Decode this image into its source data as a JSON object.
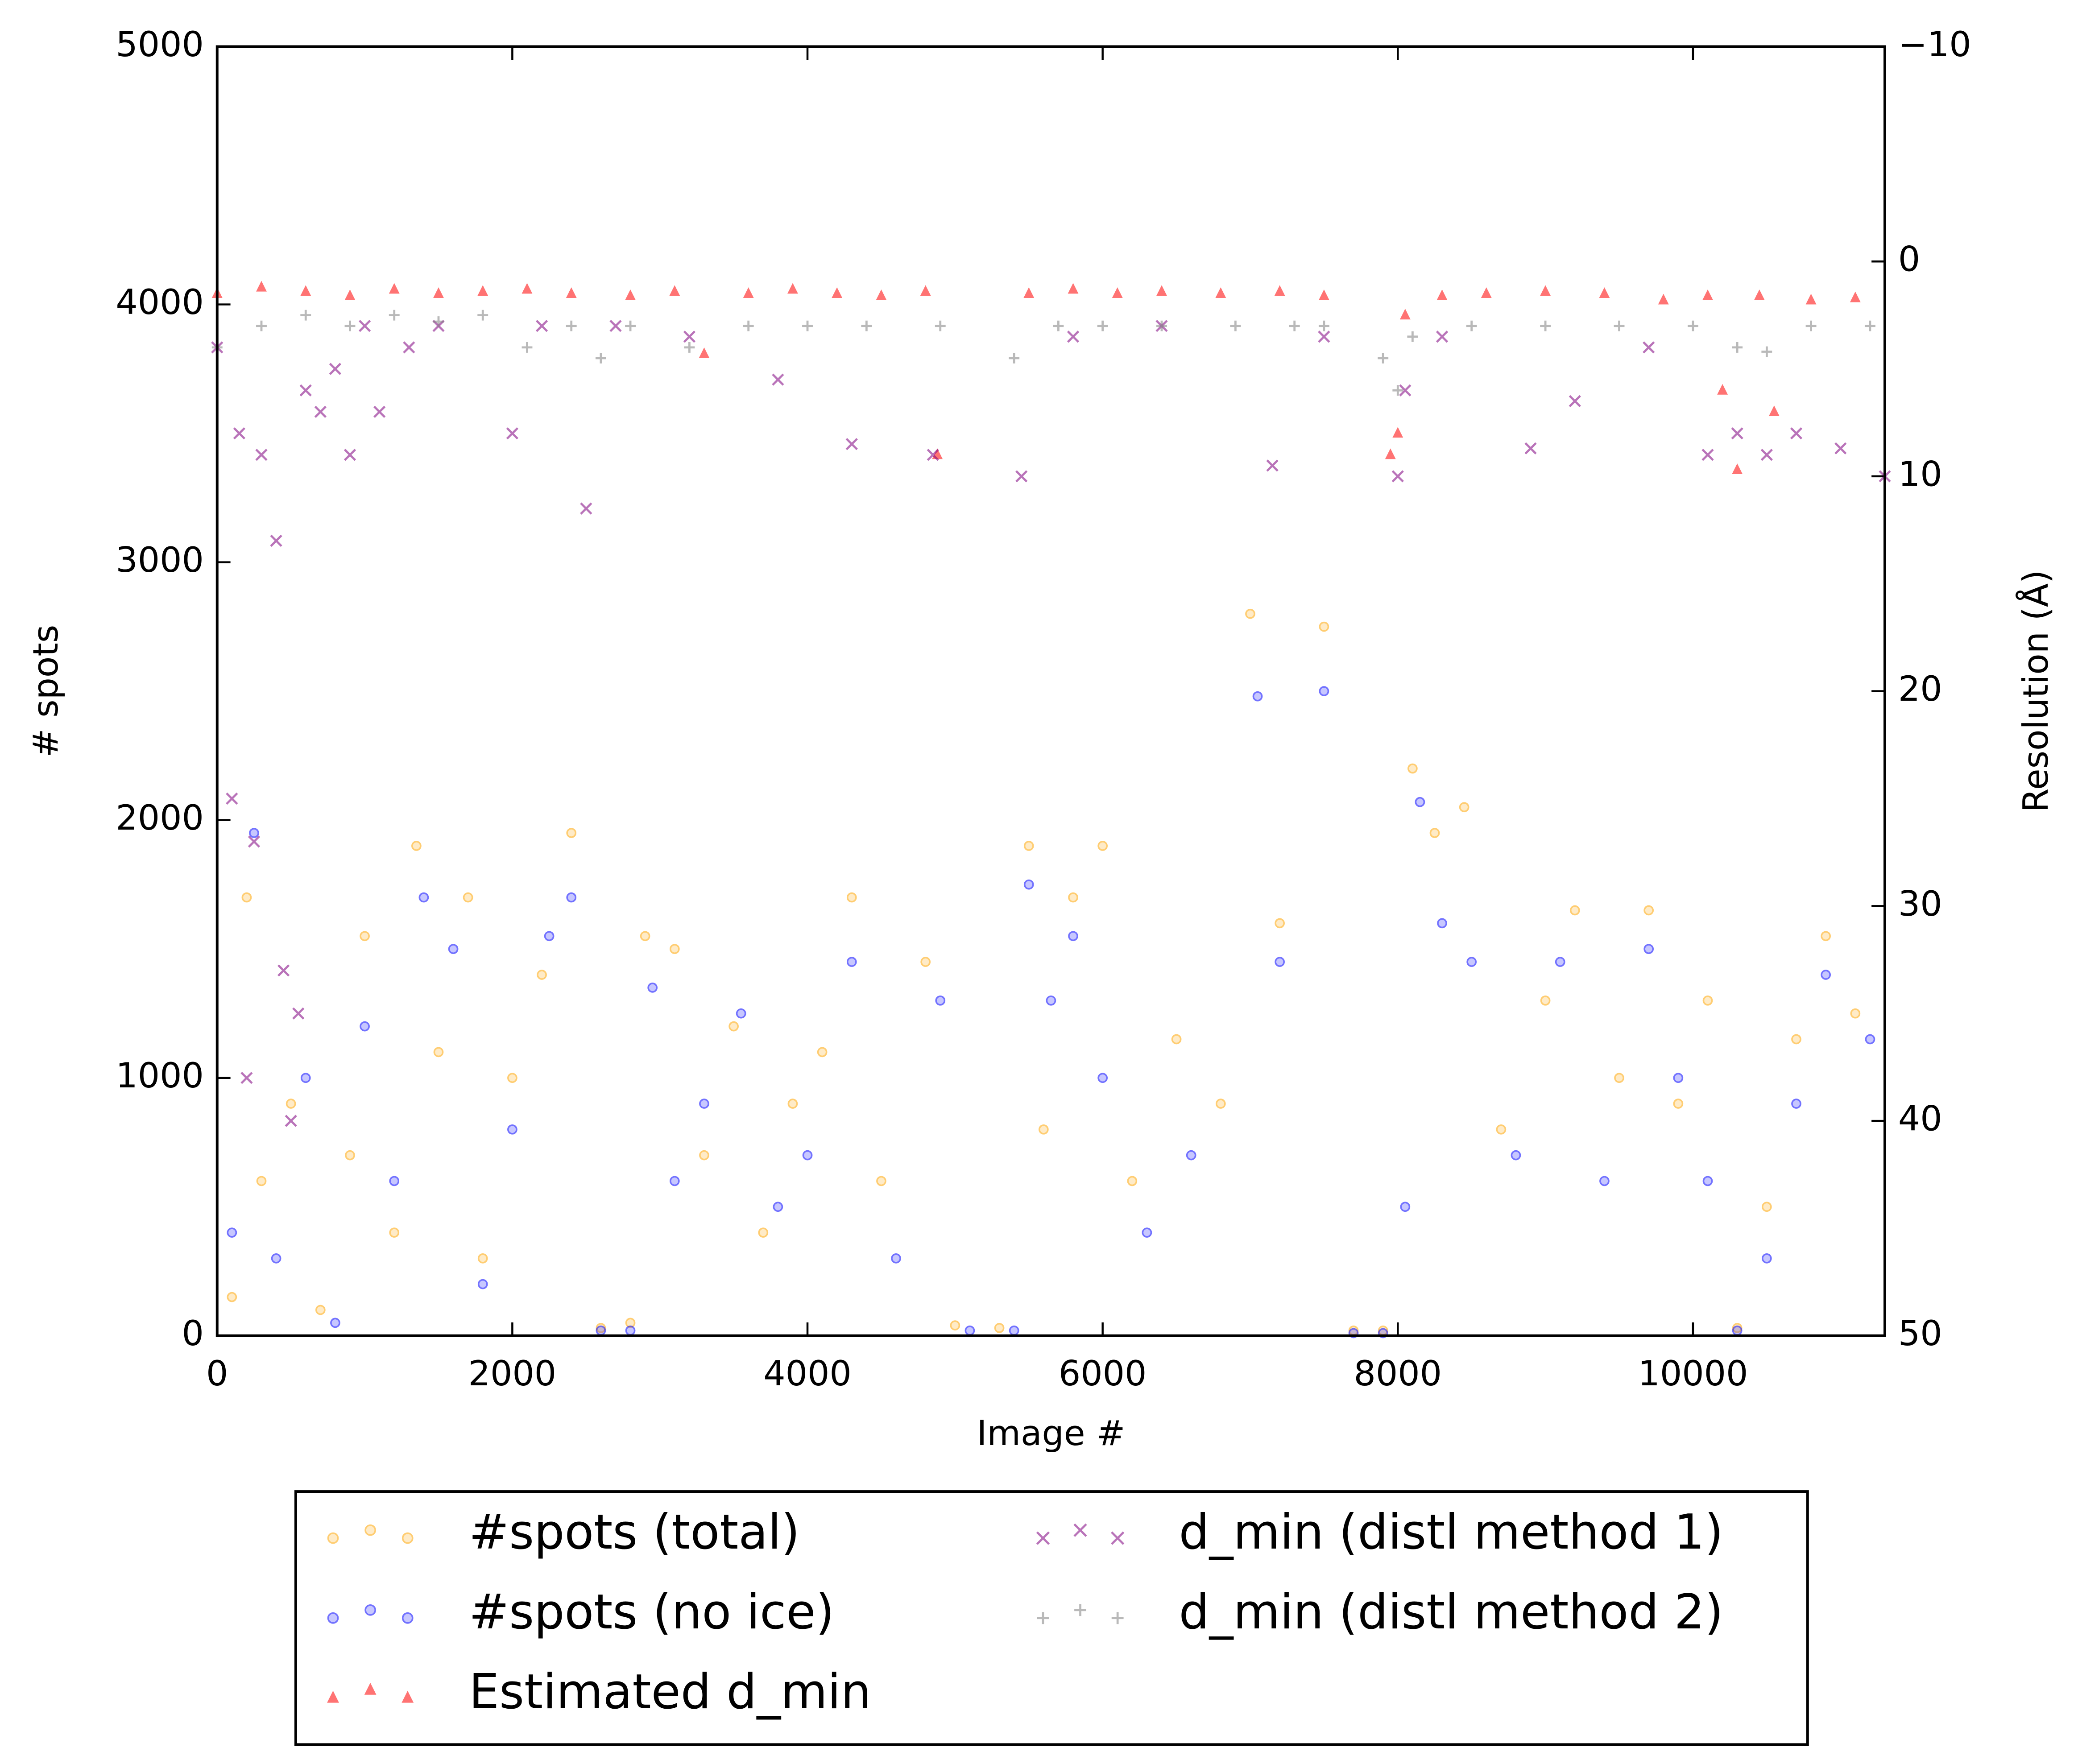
{
  "chart_data": {
    "type": "scatter",
    "xlabel": "Image #",
    "ylabel": "# spots",
    "y2label": "Resolution (Å)",
    "xlim": [
      0,
      11300
    ],
    "xticks": [
      0,
      2000,
      4000,
      6000,
      8000,
      10000
    ],
    "ylim": [
      0,
      5000
    ],
    "yticks": [
      0,
      1000,
      2000,
      3000,
      4000,
      5000
    ],
    "y2lim": [
      50,
      -10
    ],
    "y2ticks": [
      {
        "value": -10,
        "label": "−10"
      },
      0,
      10,
      20,
      30,
      40,
      50
    ],
    "series": [
      {
        "name": "#spots (total)",
        "color": "#ffa500",
        "marker": "circle",
        "axis": "y",
        "x": [
          100,
          200,
          300,
          500,
          700,
          900,
          1000,
          1200,
          1350,
          1500,
          1700,
          1800,
          2000,
          2200,
          2400,
          2600,
          2800,
          2900,
          3100,
          3300,
          3500,
          3700,
          3900,
          4100,
          4300,
          4500,
          4800,
          5000,
          5300,
          5500,
          5600,
          5800,
          6000,
          6200,
          6500,
          6800,
          7000,
          7200,
          7500,
          7700,
          7900,
          8100,
          8250,
          8450,
          8700,
          9000,
          9200,
          9500,
          9700,
          9900,
          10100,
          10300,
          10500,
          10700,
          10900,
          11100
        ],
        "values": [
          150,
          1700,
          600,
          900,
          100,
          700,
          1550,
          400,
          1900,
          1100,
          1700,
          300,
          1000,
          1400,
          1950,
          30,
          50,
          1550,
          1500,
          700,
          1200,
          400,
          900,
          1100,
          1700,
          600,
          1450,
          40,
          30,
          1900,
          800,
          1700,
          1900,
          600,
          1150,
          900,
          2800,
          1600,
          2750,
          20,
          20,
          2200,
          1950,
          2050,
          800,
          1300,
          1650,
          1000,
          1650,
          900,
          1300,
          30,
          500,
          1150,
          1550,
          1250
        ]
      },
      {
        "name": "#spots (no ice)",
        "color": "#0000ff",
        "marker": "circle",
        "axis": "y",
        "x": [
          100,
          250,
          400,
          600,
          800,
          1000,
          1200,
          1400,
          1600,
          1800,
          2000,
          2250,
          2400,
          2600,
          2800,
          2950,
          3100,
          3300,
          3550,
          3800,
          4000,
          4300,
          4600,
          4900,
          5100,
          5400,
          5500,
          5650,
          5800,
          6000,
          6300,
          6600,
          7050,
          7200,
          7500,
          7700,
          7900,
          8050,
          8150,
          8300,
          8500,
          8800,
          9100,
          9400,
          9700,
          9900,
          10100,
          10300,
          10500,
          10700,
          10900,
          11200
        ],
        "values": [
          400,
          1950,
          300,
          1000,
          50,
          1200,
          600,
          1700,
          1500,
          200,
          800,
          1550,
          1700,
          20,
          20,
          1350,
          600,
          900,
          1250,
          500,
          700,
          1450,
          300,
          1300,
          20,
          20,
          1750,
          1300,
          1550,
          1000,
          400,
          700,
          2480,
          1450,
          2500,
          10,
          10,
          500,
          2070,
          1600,
          1450,
          700,
          1450,
          600,
          1500,
          1000,
          600,
          20,
          300,
          900,
          1400,
          1150
        ]
      },
      {
        "name": "Estimated d_min",
        "color": "#ff0000",
        "marker": "triangle",
        "axis": "y2",
        "x": [
          0,
          300,
          600,
          900,
          1200,
          1500,
          1800,
          2100,
          2400,
          2800,
          3100,
          3300,
          3600,
          3900,
          4200,
          4500,
          4800,
          4880,
          5500,
          5800,
          6100,
          6400,
          6800,
          7200,
          7500,
          7950,
          8000,
          8050,
          8300,
          8600,
          9000,
          9400,
          9800,
          10100,
          10200,
          10300,
          10450,
          10550,
          10800,
          11100
        ],
        "values": [
          1.5,
          1.2,
          1.4,
          1.6,
          1.3,
          1.5,
          1.4,
          1.3,
          1.5,
          1.6,
          1.4,
          4.3,
          1.5,
          1.3,
          1.5,
          1.6,
          1.4,
          9,
          1.5,
          1.3,
          1.5,
          1.4,
          1.5,
          1.4,
          1.6,
          9,
          8,
          2.5,
          1.6,
          1.5,
          1.4,
          1.5,
          1.8,
          1.6,
          6,
          9.7,
          1.6,
          7,
          1.8,
          1.7
        ]
      },
      {
        "name": "d_min (distl method 1)",
        "color": "#800080",
        "marker": "x",
        "axis": "y2",
        "x": [
          0,
          100,
          150,
          200,
          250,
          300,
          400,
          450,
          500,
          550,
          600,
          700,
          800,
          900,
          1000,
          1100,
          1300,
          1500,
          2000,
          2200,
          2500,
          2700,
          3200,
          3800,
          4300,
          4850,
          5450,
          5800,
          6400,
          7150,
          7500,
          8000,
          8050,
          8300,
          8900,
          9200,
          9700,
          10100,
          10300,
          10500,
          10700,
          11000,
          11300
        ],
        "values": [
          4,
          25,
          8,
          38,
          27,
          9,
          13,
          33,
          40,
          35,
          6,
          7,
          5,
          9,
          3,
          7,
          4,
          3,
          8,
          3,
          11.5,
          3,
          3.5,
          5.5,
          8.5,
          9,
          10,
          3.5,
          3,
          9.5,
          3.5,
          10,
          6,
          3.5,
          8.7,
          6.5,
          4,
          9,
          8,
          9,
          8,
          8.7,
          10
        ]
      },
      {
        "name": "d_min (distl method 2)",
        "color": "#808080",
        "marker": "plus",
        "axis": "y2",
        "x": [
          0,
          300,
          600,
          900,
          1200,
          1500,
          1800,
          2100,
          2400,
          2600,
          2800,
          3200,
          3600,
          4000,
          4400,
          4900,
          5400,
          5700,
          6000,
          6400,
          6900,
          7300,
          7500,
          7900,
          8000,
          8100,
          8500,
          9000,
          9500,
          10000,
          10300,
          10500,
          10800,
          11200
        ],
        "values": [
          4,
          3,
          2.5,
          3,
          2.5,
          2.8,
          2.5,
          4,
          3,
          4.5,
          3,
          4,
          3,
          3,
          3,
          3,
          4.5,
          3,
          3,
          3,
          3,
          3,
          3,
          4.5,
          6,
          3.5,
          3,
          3,
          3,
          3,
          4,
          4.2,
          3,
          3
        ]
      }
    ]
  }
}
